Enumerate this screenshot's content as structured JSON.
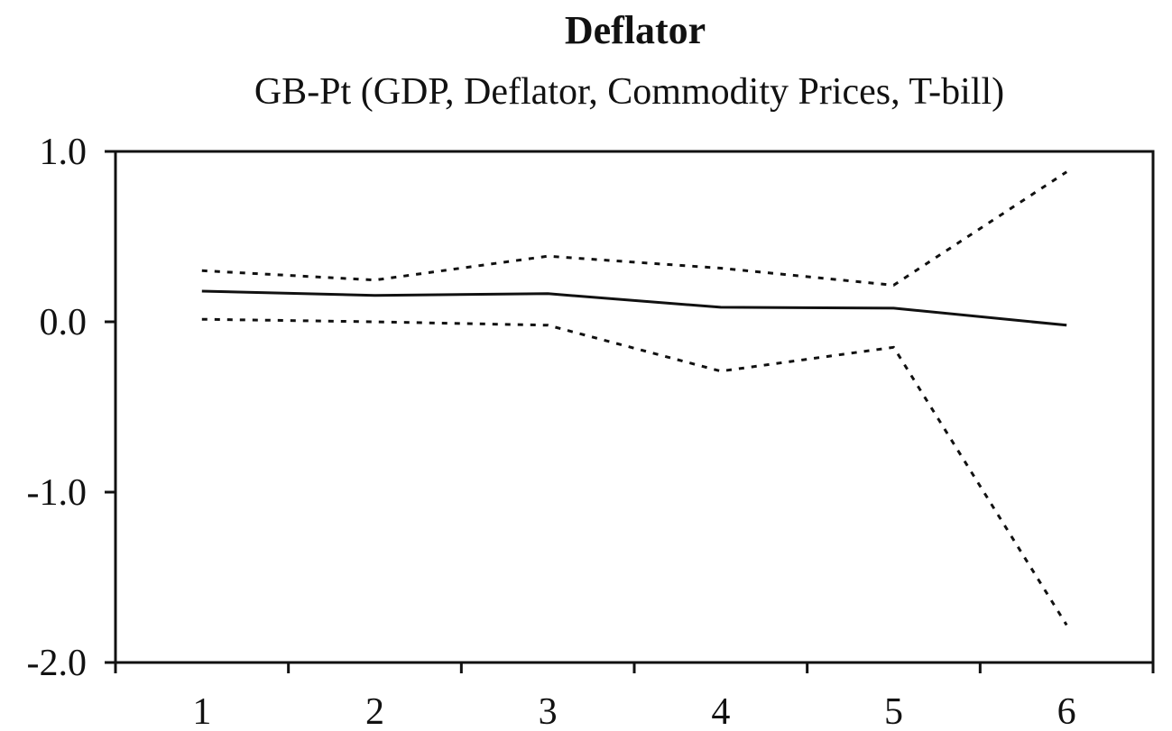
{
  "chart_data": {
    "type": "line",
    "title": "Deflator",
    "subtitle": "GB-Pt (GDP, Deflator, Commodity Prices, T-bill)",
    "x": [
      1,
      2,
      3,
      4,
      5,
      6
    ],
    "x_tick_labels": [
      "1",
      "2",
      "3",
      "4",
      "5",
      "6"
    ],
    "y_tick_values": [
      1.0,
      0.0,
      -1.0,
      -2.0
    ],
    "y_tick_labels": [
      "1.0",
      "0.0",
      "-1.0",
      "-2.0"
    ],
    "ylim": [
      -2.0,
      1.0
    ],
    "xlim": [
      0.5,
      6.5
    ],
    "grid": false,
    "series": [
      {
        "role": "estimate",
        "style": "solid",
        "values": [
          0.18,
          0.155,
          0.165,
          0.085,
          0.08,
          -0.02
        ]
      },
      {
        "role": "upper-band",
        "style": "dotted",
        "values": [
          0.3,
          0.245,
          0.385,
          0.315,
          0.215,
          0.88
        ]
      },
      {
        "role": "lower-band",
        "style": "dotted",
        "values": [
          0.015,
          0.0,
          -0.02,
          -0.29,
          -0.15,
          -1.78
        ]
      }
    ]
  }
}
